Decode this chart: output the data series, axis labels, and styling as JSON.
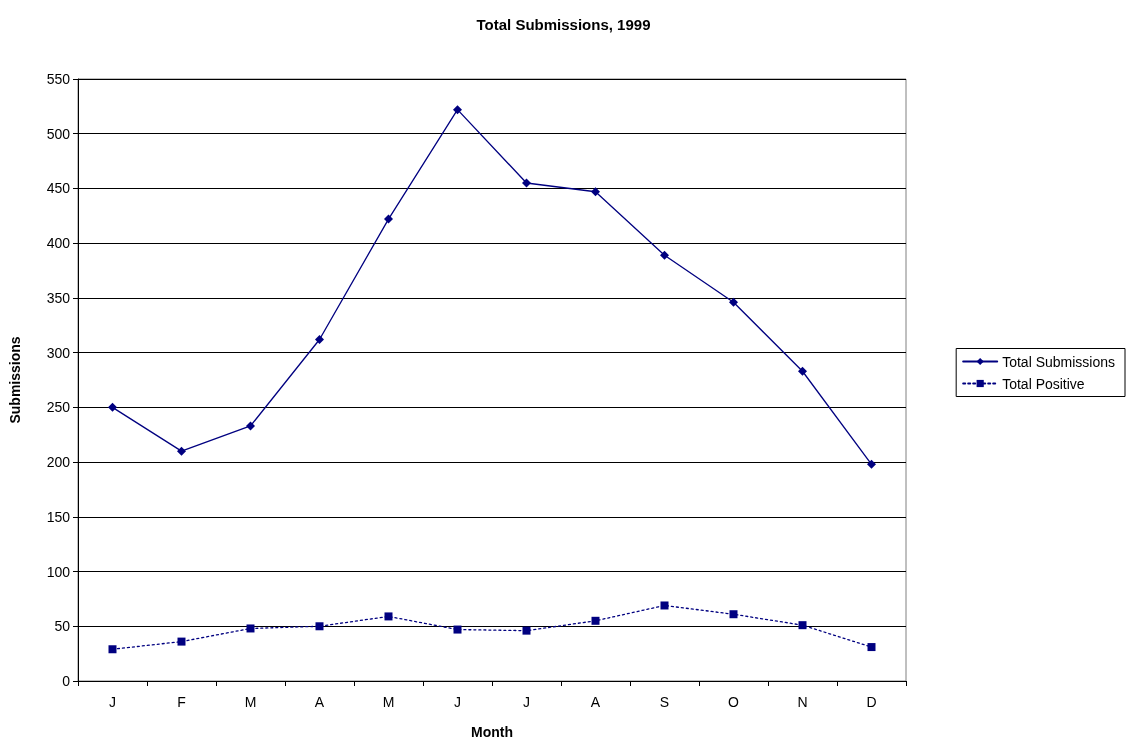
{
  "chart_data": {
    "type": "line",
    "title": "Total Submissions, 1999",
    "xlabel": "Month",
    "ylabel": "Submissions",
    "categories": [
      "J",
      "F",
      "M",
      "A",
      "M",
      "J",
      "J",
      "A",
      "S",
      "O",
      "N",
      "D"
    ],
    "series": [
      {
        "name": "Total Submissions",
        "color": "#000080",
        "marker": "diamond",
        "line_style": "solid",
        "values": [
          250,
          210,
          233,
          312,
          422,
          522,
          455,
          447,
          389,
          346,
          283,
          198
        ]
      },
      {
        "name": "Total Positive",
        "color": "#000080",
        "marker": "square",
        "line_style": "dotted",
        "values": [
          29,
          36,
          48,
          50,
          59,
          47,
          46,
          55,
          69,
          61,
          51,
          31
        ]
      }
    ],
    "ylim": [
      0,
      550
    ],
    "yticks": [
      0,
      50,
      100,
      150,
      200,
      250,
      300,
      350,
      400,
      450,
      500,
      550
    ],
    "grid": "y",
    "legend": "right"
  }
}
